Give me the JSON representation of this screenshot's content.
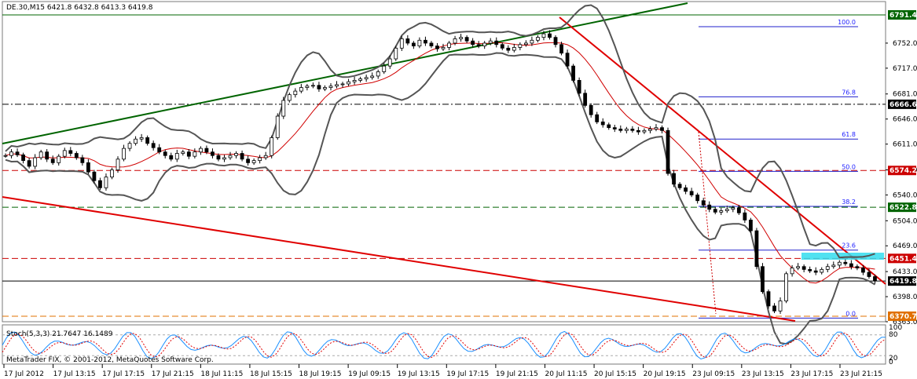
{
  "header": {
    "title": "DE.30,M15  6421.8 6432.8 6413.3 6419.8"
  },
  "footer": {
    "copyright": "MetaTrader FIX, © 2001-2012, MetaQuotes Software Corp."
  },
  "indicator": {
    "label": "Stoch(5,3,3) 21.7647 16.1489",
    "levels": [
      "80",
      "20"
    ],
    "scale_top": "100",
    "scale_bottom": "0"
  },
  "chart_data": {
    "type": "candlestick",
    "symbol": "DE.30",
    "timeframe": "M15",
    "ohlc_header": {
      "open": 6421.8,
      "high": 6432.8,
      "low": 6413.3,
      "close": 6419.8
    },
    "ylim": [
      6363.0,
      6810.0
    ],
    "y_ticks": [
      "6752.0",
      "6717.0",
      "6681.0",
      "6646.0",
      "6611.0",
      "6575.0",
      "6540.0",
      "6504.0",
      "6469.0",
      "6433.0",
      "6398.0",
      "6363.0"
    ],
    "x_ticks": [
      "17 Jul 2012",
      "17 Jul 13:15",
      "17 Jul 17:15",
      "17 Jul 21:15",
      "18 Jul 11:15",
      "18 Jul 15:15",
      "18 Jul 19:15",
      "19 Jul 09:15",
      "19 Jul 13:15",
      "19 Jul 17:15",
      "19 Jul 21:15",
      "20 Jul 11:15",
      "20 Jul 15:15",
      "20 Jul 19:15",
      "23 Jul 09:15",
      "23 Jul 13:15",
      "23 Jul 17:15",
      "23 Jul 21:15"
    ],
    "price_levels": [
      {
        "value": 6791.4,
        "label": "6791.4",
        "color": "#006400",
        "style": "solid"
      },
      {
        "value": 6666.6,
        "label": "6666.6",
        "color": "#000000",
        "style": "dashdot"
      },
      {
        "value": 6574.2,
        "label": "6574.2",
        "color": "#cc0000",
        "style": "dashed"
      },
      {
        "value": 6522.8,
        "label": "6522.8",
        "color": "#006400",
        "style": "dashed"
      },
      {
        "value": 6451.4,
        "label": "6451.4",
        "color": "#cc0000",
        "style": "dashed"
      },
      {
        "value": 6419.8,
        "label": "6419.8",
        "color": "#000000",
        "style": "solid"
      },
      {
        "value": 6370.7,
        "label": "6370.7",
        "color": "#e07000",
        "style": "dashed"
      }
    ],
    "fibonacci": [
      {
        "label": "100.0",
        "value": 6775.0
      },
      {
        "label": "76.8",
        "value": 6677.0
      },
      {
        "label": "61.8",
        "value": 6618.0
      },
      {
        "label": "50.0",
        "value": 6573.0
      },
      {
        "label": "38.2",
        "value": 6524.0
      },
      {
        "label": "23.6",
        "value": 6463.0
      },
      {
        "label": "0.0",
        "value": 6368.0
      }
    ],
    "series": [
      {
        "values": [
          6595,
          6600,
          6596,
          6588,
          6580,
          6592,
          6600,
          6590,
          6585,
          6594,
          6602,
          6598,
          6592,
          6585,
          6572,
          6560,
          6550,
          6565,
          6575,
          6590,
          6605,
          6612,
          6618,
          6620,
          6612,
          6606,
          6600,
          6595,
          6590,
          6598,
          6600,
          6594,
          6600,
          6605,
          6600,
          6595,
          6590,
          6592,
          6595,
          6598,
          6590,
          6585,
          6588,
          6592,
          6595,
          6620,
          6650,
          6672,
          6680,
          6685,
          6690,
          6692,
          6693,
          6688,
          6690,
          6692,
          6694,
          6695,
          6698,
          6700,
          6702,
          6704,
          6706,
          6712,
          6720,
          6730,
          6745,
          6758,
          6752,
          6748,
          6756,
          6752,
          6748,
          6744,
          6746,
          6752,
          6758,
          6760,
          6755,
          6750,
          6748,
          6752,
          6755,
          6750,
          6745,
          6742,
          6746,
          6750,
          6752,
          6756,
          6760,
          6765,
          6760,
          6750,
          6738,
          6720,
          6700,
          6682,
          6665,
          6652,
          6642,
          6638,
          6634,
          6632,
          6630,
          6632,
          6630,
          6628,
          6630,
          6632,
          6634,
          6630,
          6570,
          6555,
          6550,
          6545,
          6540,
          6532,
          6526,
          6520,
          6516,
          6518,
          6520,
          6522,
          6515,
          6505,
          6490,
          6440,
          6405,
          6385,
          6378,
          6392,
          6430,
          6438,
          6440,
          6436,
          6434,
          6432,
          6436,
          6440,
          6442,
          6446,
          6444,
          6440,
          6438,
          6432,
          6426,
          6420
        ]
      }
    ]
  }
}
